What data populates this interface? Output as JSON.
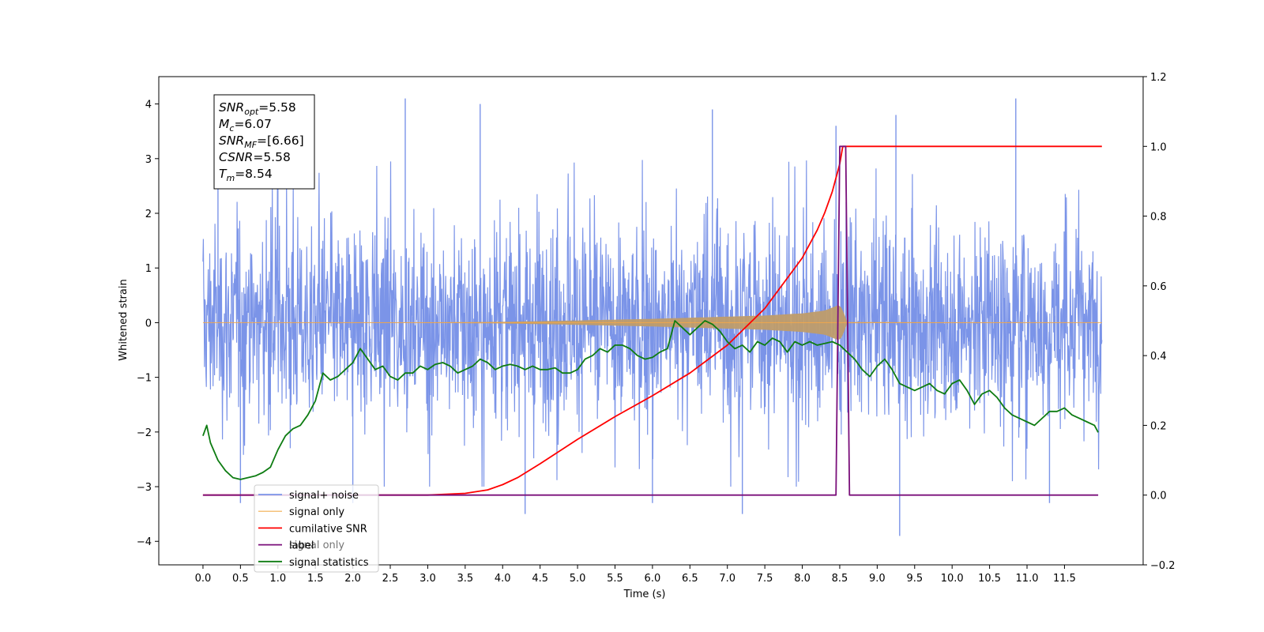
{
  "chart_data": {
    "type": "line",
    "xlabel": "Time (s)",
    "ylabel": "Whitened strain",
    "xlim": [
      -0.59,
      12.55
    ],
    "ylim_left": [
      -4.43,
      4.5
    ],
    "ylim_right": [
      -0.2,
      1.2
    ],
    "x_ticks": [
      0.0,
      0.5,
      1.0,
      1.5,
      2.0,
      2.5,
      3.0,
      3.5,
      4.0,
      4.5,
      5.0,
      5.5,
      6.0,
      6.5,
      7.0,
      7.5,
      8.0,
      8.5,
      9.0,
      9.5,
      10.0,
      10.5,
      11.0,
      11.5
    ],
    "x_tick_labels": [
      "0.0",
      "0.5",
      "1.0",
      "1.5",
      "2.0",
      "2.5",
      "3.0",
      "3.5",
      "4.0",
      "4.5",
      "5.0",
      "5.5",
      "6.0",
      "6.5",
      "7.0",
      "7.5",
      "8.0",
      "8.5",
      "9.0",
      "9.5",
      "10.0",
      "10.5",
      "11.0",
      "11.5"
    ],
    "y_left_ticks": [
      -4,
      -3,
      -2,
      -1,
      0,
      1,
      2,
      3,
      4
    ],
    "y_left_tick_labels": [
      "−4",
      "−3",
      "−2",
      "−1",
      "0",
      "1",
      "2",
      "3",
      "4"
    ],
    "y_right_ticks": [
      -0.2,
      0.0,
      0.2,
      0.4,
      0.6,
      0.8,
      1.0,
      1.2
    ],
    "y_right_tick_labels": [
      "−0.2",
      "0.0",
      "0.2",
      "0.4",
      "0.6",
      "0.8",
      "1.0",
      "1.2"
    ],
    "grid": false,
    "legend_position": "lower-left",
    "info_box": {
      "position": "top-left",
      "lines": [
        {
          "base": "SNR",
          "sub": "opt",
          "value": "=5.58"
        },
        {
          "base": "M",
          "sub": "c",
          "value": "=6.07"
        },
        {
          "base": "SNR",
          "sub": "MF",
          "value": "=[6.66]"
        },
        {
          "base": "CSNR",
          "sub": "",
          "value": "=5.58"
        },
        {
          "base": "T",
          "sub": "m",
          "value": "=8.54"
        }
      ]
    },
    "hidden_legend_label": "signal only",
    "series": [
      {
        "name": "signal+ noise",
        "color": "#7b94e8",
        "axis": "left",
        "style": "dense-noise",
        "x_range": [
          0.0,
          12.0
        ],
        "peaks": [
          [
            0.2,
            2.6
          ],
          [
            1.0,
            3.4
          ],
          [
            2.7,
            4.1
          ],
          [
            3.7,
            4.0
          ],
          [
            6.8,
            3.9
          ],
          [
            8.45,
            3.6
          ],
          [
            9.25,
            3.8
          ],
          [
            10.85,
            4.1
          ]
        ],
        "troughs": [
          [
            0.5,
            -3.3
          ],
          [
            2.0,
            -3.3
          ],
          [
            4.3,
            -3.5
          ],
          [
            6.0,
            -3.3
          ],
          [
            7.2,
            -3.5
          ],
          [
            9.3,
            -3.9
          ],
          [
            11.3,
            -3.3
          ]
        ]
      },
      {
        "name": "signal only",
        "color": "#f5a849",
        "axis": "left",
        "style": "chirp-envelope",
        "x": [
          0.0,
          3.0,
          4.0,
          5.0,
          6.0,
          7.0,
          7.5,
          8.0,
          8.3,
          8.5,
          8.55,
          8.6,
          12.0
        ],
        "envelope": [
          0.0,
          0.005,
          0.015,
          0.04,
          0.07,
          0.11,
          0.13,
          0.17,
          0.22,
          0.33,
          0.2,
          0.01,
          0.0
        ]
      },
      {
        "name": "cumilative SNR",
        "color": "#ff0000",
        "axis": "right",
        "x": [
          0.0,
          3.0,
          3.5,
          3.8,
          4.0,
          4.2,
          4.5,
          5.0,
          5.5,
          6.0,
          6.5,
          7.0,
          7.5,
          8.0,
          8.2,
          8.3,
          8.4,
          8.5,
          8.54,
          8.6,
          12.0
        ],
        "y": [
          0.0,
          0.0,
          0.005,
          0.015,
          0.03,
          0.05,
          0.09,
          0.16,
          0.225,
          0.285,
          0.35,
          0.43,
          0.535,
          0.68,
          0.76,
          0.81,
          0.87,
          0.95,
          1.0,
          1.0,
          1.0
        ]
      },
      {
        "name": "label",
        "color": "#7a0f7a",
        "axis": "right",
        "x": [
          0.0,
          8.45,
          8.5,
          8.58,
          8.63,
          11.95
        ],
        "y": [
          0.0,
          0.0,
          1.0,
          1.0,
          0.0,
          0.0
        ]
      },
      {
        "name": "signal statistics",
        "color": "#0e7c12",
        "axis": "right",
        "x": [
          0.0,
          0.05,
          0.1,
          0.2,
          0.3,
          0.4,
          0.5,
          0.6,
          0.7,
          0.8,
          0.9,
          1.0,
          1.1,
          1.2,
          1.3,
          1.4,
          1.5,
          1.6,
          1.7,
          1.8,
          1.9,
          2.0,
          2.1,
          2.2,
          2.3,
          2.4,
          2.5,
          2.6,
          2.7,
          2.8,
          2.9,
          3.0,
          3.1,
          3.2,
          3.3,
          3.4,
          3.5,
          3.6,
          3.7,
          3.8,
          3.9,
          4.0,
          4.1,
          4.2,
          4.3,
          4.4,
          4.5,
          4.6,
          4.7,
          4.8,
          4.9,
          5.0,
          5.1,
          5.2,
          5.3,
          5.4,
          5.5,
          5.6,
          5.7,
          5.8,
          5.9,
          6.0,
          6.1,
          6.2,
          6.3,
          6.4,
          6.5,
          6.6,
          6.7,
          6.8,
          6.9,
          7.0,
          7.1,
          7.2,
          7.3,
          7.4,
          7.5,
          7.6,
          7.7,
          7.8,
          7.9,
          8.0,
          8.1,
          8.2,
          8.3,
          8.4,
          8.5,
          8.6,
          8.7,
          8.8,
          8.9,
          9.0,
          9.1,
          9.2,
          9.3,
          9.4,
          9.5,
          9.6,
          9.7,
          9.8,
          9.9,
          10.0,
          10.1,
          10.2,
          10.3,
          10.4,
          10.5,
          10.6,
          10.7,
          10.8,
          10.9,
          11.0,
          11.1,
          11.2,
          11.3,
          11.4,
          11.5,
          11.6,
          11.7,
          11.8,
          11.9,
          11.95
        ],
        "y": [
          0.17,
          0.2,
          0.15,
          0.1,
          0.07,
          0.05,
          0.045,
          0.05,
          0.055,
          0.065,
          0.08,
          0.13,
          0.17,
          0.19,
          0.2,
          0.23,
          0.27,
          0.35,
          0.33,
          0.34,
          0.36,
          0.38,
          0.42,
          0.39,
          0.36,
          0.37,
          0.34,
          0.33,
          0.35,
          0.35,
          0.37,
          0.36,
          0.375,
          0.38,
          0.37,
          0.35,
          0.36,
          0.37,
          0.39,
          0.38,
          0.36,
          0.37,
          0.375,
          0.37,
          0.36,
          0.37,
          0.36,
          0.36,
          0.365,
          0.35,
          0.35,
          0.36,
          0.39,
          0.4,
          0.42,
          0.41,
          0.43,
          0.43,
          0.42,
          0.4,
          0.39,
          0.395,
          0.41,
          0.42,
          0.5,
          0.48,
          0.46,
          0.48,
          0.5,
          0.49,
          0.47,
          0.44,
          0.42,
          0.43,
          0.41,
          0.44,
          0.43,
          0.45,
          0.44,
          0.41,
          0.44,
          0.43,
          0.44,
          0.43,
          0.435,
          0.44,
          0.43,
          0.41,
          0.39,
          0.36,
          0.34,
          0.37,
          0.39,
          0.36,
          0.32,
          0.31,
          0.3,
          0.31,
          0.32,
          0.3,
          0.29,
          0.32,
          0.33,
          0.3,
          0.26,
          0.29,
          0.3,
          0.28,
          0.25,
          0.23,
          0.22,
          0.21,
          0.2,
          0.22,
          0.24,
          0.24,
          0.25,
          0.23,
          0.22,
          0.21,
          0.2,
          0.18
        ]
      }
    ]
  }
}
